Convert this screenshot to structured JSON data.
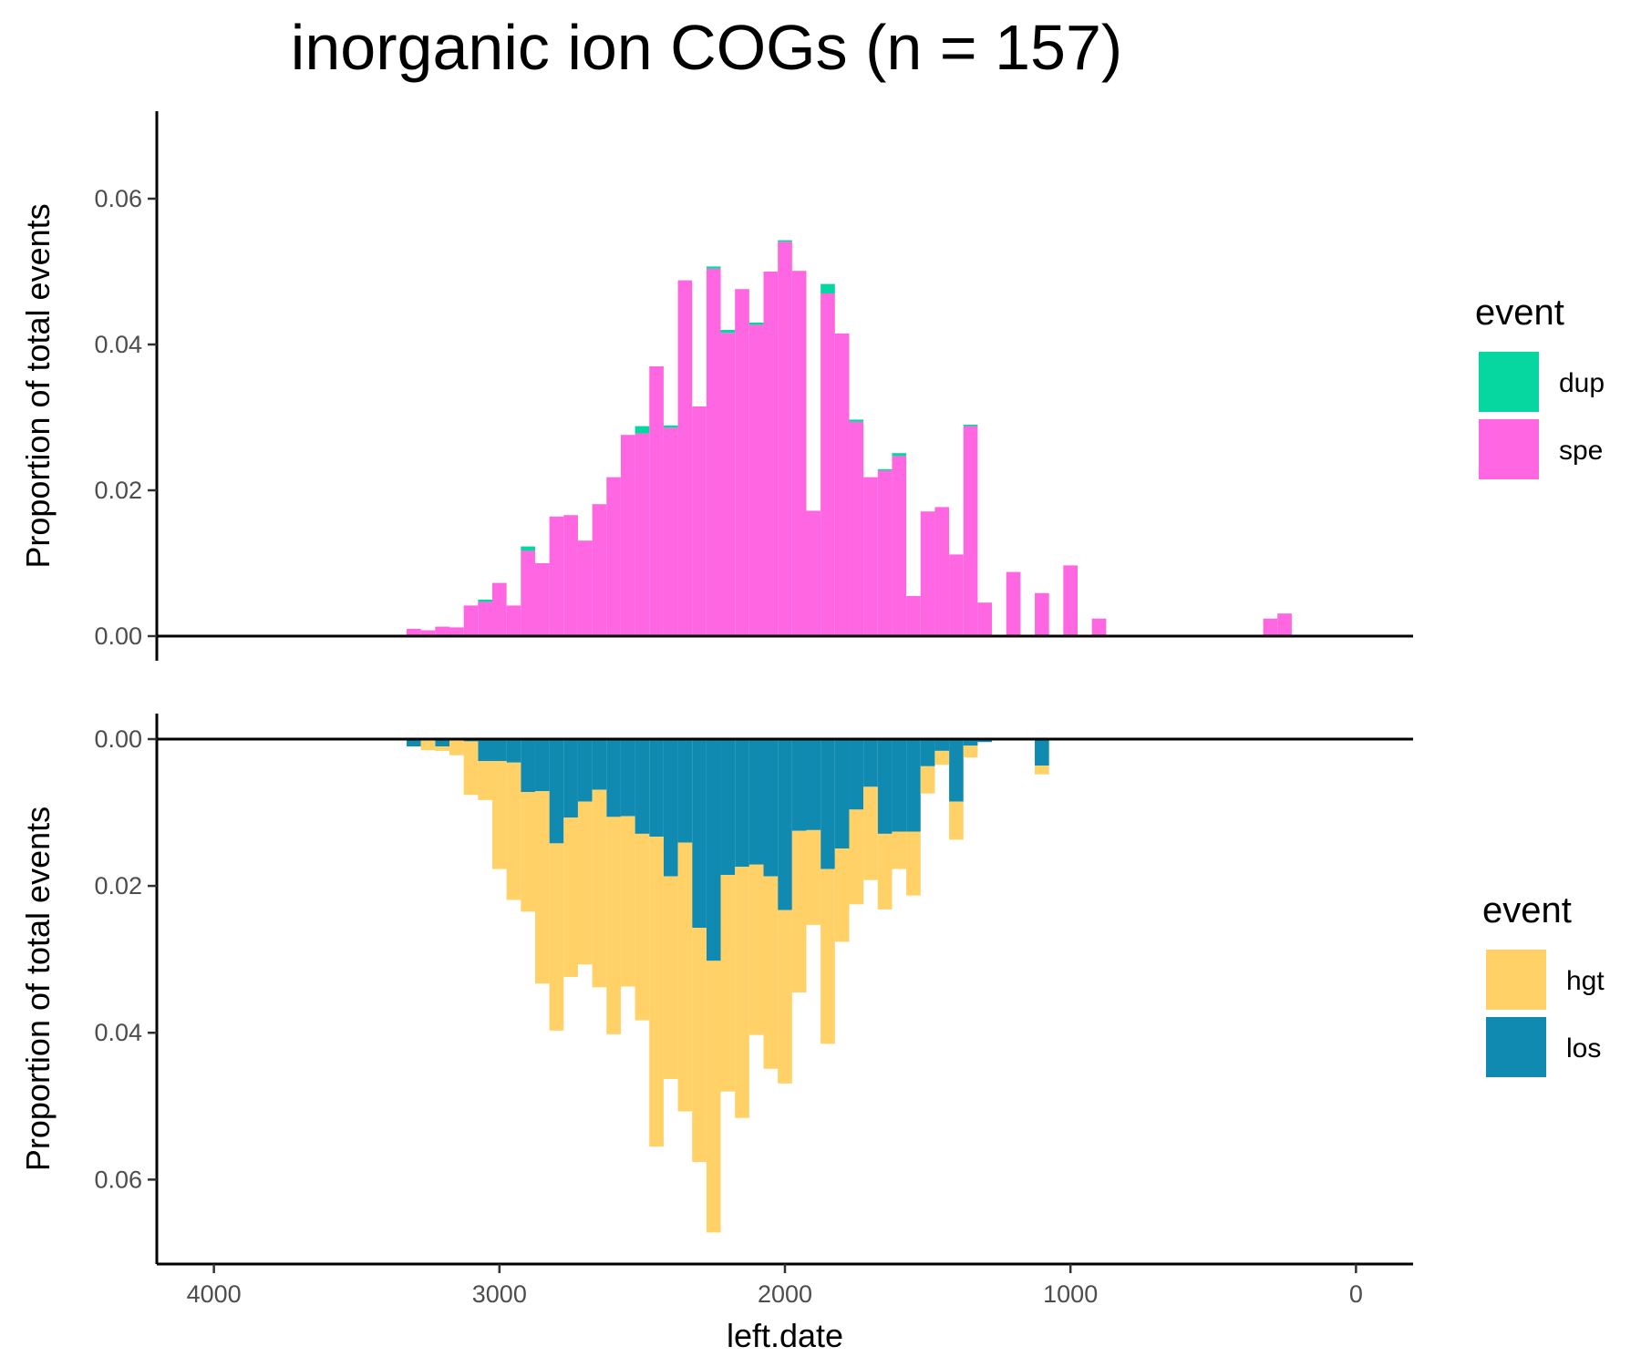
{
  "chart_data": {
    "type": "bar",
    "title": "inorganic ion COGs (n = 157)",
    "xlabel": "left.date",
    "x_reversed": true,
    "xlim": [
      4200,
      -200
    ],
    "xticks": [
      4000,
      3000,
      2000,
      1000,
      0
    ],
    "bin_width": 50,
    "panels": [
      {
        "ylabel": "Proportion of total events",
        "direction": "up",
        "ylim": [
          0,
          0.072
        ],
        "yticks": [
          "0.00",
          "0.02",
          "0.04",
          "0.06"
        ],
        "legend_title": "event",
        "series": [
          {
            "name": "dup",
            "color": "#06D6A0",
            "values": [
              [
                3050,
                0.0003
              ],
              [
                2900,
                0.0006
              ],
              [
                2500,
                0.001
              ],
              [
                2400,
                0.0003
              ],
              [
                2250,
                0.0003
              ],
              [
                2200,
                0.0004
              ],
              [
                2100,
                0.0003
              ],
              [
                2000,
                0.0002
              ],
              [
                1850,
                0.0013
              ],
              [
                1750,
                0.0003
              ],
              [
                1650,
                0.0002
              ],
              [
                1600,
                0.0004
              ],
              [
                1350,
                0.0002
              ]
            ]
          },
          {
            "name": "spe",
            "color": "#FF66E1",
            "values": [
              [
                3300,
                0.001
              ],
              [
                3250,
                0.0008
              ],
              [
                3200,
                0.0013
              ],
              [
                3150,
                0.0012
              ],
              [
                3100,
                0.0042
              ],
              [
                3050,
                0.0047
              ],
              [
                3000,
                0.0073
              ],
              [
                2950,
                0.0042
              ],
              [
                2900,
                0.0117
              ],
              [
                2850,
                0.01
              ],
              [
                2800,
                0.0164
              ],
              [
                2750,
                0.0166
              ],
              [
                2700,
                0.0131
              ],
              [
                2650,
                0.0181
              ],
              [
                2600,
                0.0218
              ],
              [
                2550,
                0.0276
              ],
              [
                2500,
                0.0278
              ],
              [
                2450,
                0.037
              ],
              [
                2400,
                0.0286
              ],
              [
                2350,
                0.0488
              ],
              [
                2300,
                0.0315
              ],
              [
                2250,
                0.0504
              ],
              [
                2200,
                0.0416
              ],
              [
                2150,
                0.0476
              ],
              [
                2100,
                0.0427
              ],
              [
                2050,
                0.05
              ],
              [
                2000,
                0.0541
              ],
              [
                1950,
                0.0501
              ],
              [
                1900,
                0.0172
              ],
              [
                1850,
                0.047
              ],
              [
                1800,
                0.0415
              ],
              [
                1750,
                0.0294
              ],
              [
                1700,
                0.0218
              ],
              [
                1650,
                0.0227
              ],
              [
                1600,
                0.0247
              ],
              [
                1550,
                0.0055
              ],
              [
                1500,
                0.0171
              ],
              [
                1450,
                0.0177
              ],
              [
                1400,
                0.0112
              ],
              [
                1350,
                0.0288
              ],
              [
                1300,
                0.0046
              ],
              [
                1200,
                0.0088
              ],
              [
                1100,
                0.0059
              ],
              [
                1000,
                0.0097
              ],
              [
                900,
                0.0024
              ],
              [
                300,
                0.0024
              ],
              [
                250,
                0.0031
              ]
            ]
          }
        ]
      },
      {
        "ylabel": "Proportion of total events",
        "direction": "down",
        "ylim": [
          0,
          0.0715
        ],
        "yticks": [
          "0.00",
          "0.02",
          "0.04",
          "0.06"
        ],
        "legend_title": "event",
        "series": [
          {
            "name": "hgt",
            "color": "#FFD166",
            "values": [
              [
                3300,
                0.0
              ],
              [
                3250,
                0.0013
              ],
              [
                3200,
                0.0006
              ],
              [
                3150,
                0.0022
              ],
              [
                3100,
                0.0073
              ],
              [
                3050,
                0.0053
              ],
              [
                3000,
                0.0147
              ],
              [
                2950,
                0.0187
              ],
              [
                2900,
                0.0163
              ],
              [
                2850,
                0.0262
              ],
              [
                2800,
                0.0255
              ],
              [
                2750,
                0.0217
              ],
              [
                2700,
                0.0222
              ],
              [
                2650,
                0.0269
              ],
              [
                2600,
                0.0296
              ],
              [
                2550,
                0.0232
              ],
              [
                2500,
                0.0254
              ],
              [
                2450,
                0.0422
              ],
              [
                2400,
                0.0276
              ],
              [
                2350,
                0.0366
              ],
              [
                2300,
                0.0319
              ],
              [
                2250,
                0.037
              ],
              [
                2200,
                0.0295
              ],
              [
                2150,
                0.0342
              ],
              [
                2100,
                0.0232
              ],
              [
                2050,
                0.0262
              ],
              [
                2000,
                0.0236
              ],
              [
                1950,
                0.022
              ],
              [
                1900,
                0.0129
              ],
              [
                1850,
                0.0238
              ],
              [
                1800,
                0.0127
              ],
              [
                1750,
                0.0129
              ],
              [
                1700,
                0.0127
              ],
              [
                1650,
                0.0103
              ],
              [
                1600,
                0.0051
              ],
              [
                1550,
                0.0087
              ],
              [
                1500,
                0.0037
              ],
              [
                1450,
                0.0019
              ],
              [
                1400,
                0.0052
              ],
              [
                1350,
                0.0016
              ],
              [
                1200,
                0.0001
              ],
              [
                1100,
                0.0012
              ]
            ]
          },
          {
            "name": "los",
            "color": "#118AB2",
            "values": [
              [
                3300,
                0.001
              ],
              [
                3250,
                0.0002
              ],
              [
                3200,
                0.001
              ],
              [
                3150,
                0.0
              ],
              [
                3100,
                0.0003
              ],
              [
                3050,
                0.003
              ],
              [
                3000,
                0.003
              ],
              [
                2950,
                0.0032
              ],
              [
                2900,
                0.0072
              ],
              [
                2850,
                0.0071
              ],
              [
                2800,
                0.0142
              ],
              [
                2750,
                0.0107
              ],
              [
                2700,
                0.0085
              ],
              [
                2650,
                0.0069
              ],
              [
                2600,
                0.0106
              ],
              [
                2550,
                0.0105
              ],
              [
                2500,
                0.0129
              ],
              [
                2450,
                0.0133
              ],
              [
                2400,
                0.0187
              ],
              [
                2350,
                0.0141
              ],
              [
                2300,
                0.0257
              ],
              [
                2250,
                0.0302
              ],
              [
                2200,
                0.0185
              ],
              [
                2150,
                0.0174
              ],
              [
                2100,
                0.0171
              ],
              [
                2050,
                0.0187
              ],
              [
                2000,
                0.0233
              ],
              [
                1950,
                0.0125
              ],
              [
                1900,
                0.0124
              ],
              [
                1850,
                0.0177
              ],
              [
                1800,
                0.0149
              ],
              [
                1750,
                0.0096
              ],
              [
                1700,
                0.0065
              ],
              [
                1650,
                0.0129
              ],
              [
                1600,
                0.0126
              ],
              [
                1550,
                0.0126
              ],
              [
                1500,
                0.0037
              ],
              [
                1450,
                0.0016
              ],
              [
                1400,
                0.0085
              ],
              [
                1350,
                0.0009
              ],
              [
                1300,
                0.0004
              ],
              [
                1100,
                0.0036
              ]
            ]
          }
        ]
      }
    ]
  }
}
